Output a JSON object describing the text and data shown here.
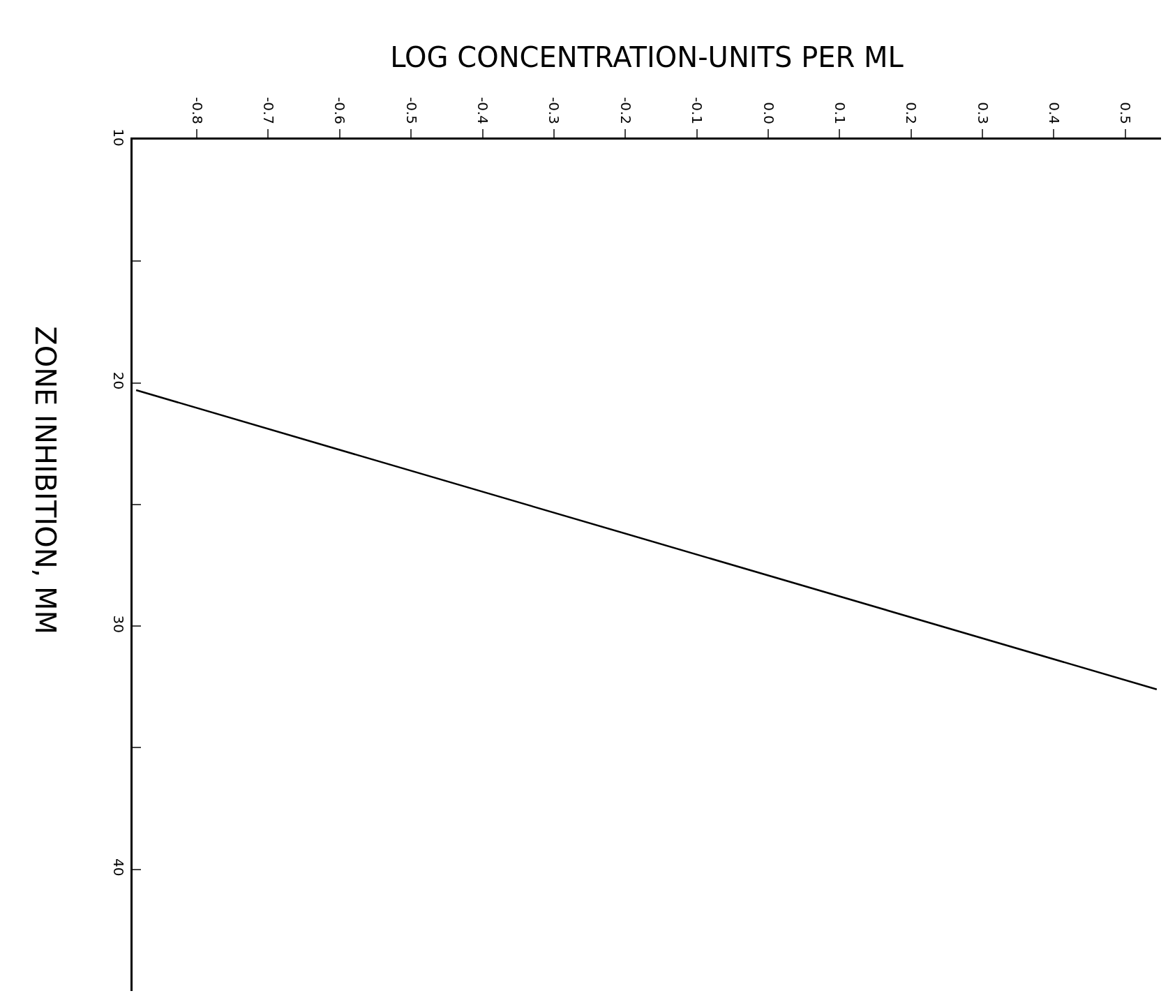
{
  "chart_data": {
    "type": "line",
    "xlabel": "LOG CONCENTRATION-UNITS PER ML",
    "ylabel": "ZONE INHIBITION, MM",
    "series": [
      {
        "color": "#000000",
        "x": [
          -0.885,
          0.544
        ],
        "values": [
          20.3,
          32.6
        ]
      }
    ],
    "xlim": [
      -0.89,
      0.55
    ],
    "ylim": [
      45,
      10
    ],
    "xticks": [
      -0.8,
      -0.7,
      -0.6,
      -0.5,
      -0.4,
      -0.3,
      -0.2,
      -0.1,
      {
        "value": 0,
        "label": "0.0"
      },
      0.1,
      0.2,
      0.3,
      0.4,
      0.5
    ],
    "yticks": [
      10,
      {
        "value": 15,
        "label": null
      },
      20,
      {
        "value": 25,
        "label": null
      },
      30,
      {
        "value": 35,
        "label": null
      },
      40
    ],
    "legend": false,
    "marker": "none",
    "line_style": "solid"
  }
}
